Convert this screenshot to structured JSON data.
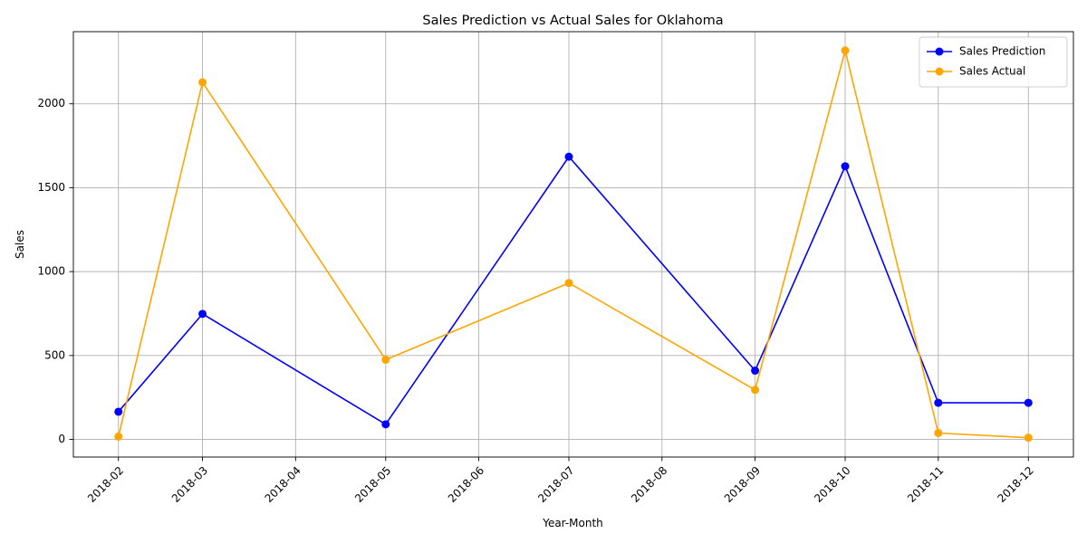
{
  "chart_data": {
    "type": "line",
    "title": "Sales Prediction vs Actual Sales for Oklahoma",
    "xlabel": "Year-Month",
    "ylabel": "Sales",
    "x_ticks": [
      "2018-02",
      "2018-03",
      "2018-04",
      "2018-05",
      "2018-06",
      "2018-07",
      "2018-08",
      "2018-09",
      "2018-10",
      "2018-11",
      "2018-12"
    ],
    "y_ticks": [
      0,
      500,
      1000,
      1500,
      2000
    ],
    "ylim": [
      -105,
      2430
    ],
    "xlim": [
      "2018-01-17",
      "2018-12-16"
    ],
    "grid": true,
    "legend_position": "top-right",
    "series": [
      {
        "name": "Sales Prediction",
        "color": "#0000ff",
        "marker": "circle",
        "x": [
          "2018-02",
          "2018-03",
          "2018-05",
          "2018-07",
          "2018-09",
          "2018-10",
          "2018-11",
          "2018-12"
        ],
        "values": [
          165,
          748,
          90,
          1685,
          410,
          1628,
          218,
          218
        ]
      },
      {
        "name": "Sales Actual",
        "color": "#ffa500",
        "marker": "circle",
        "x": [
          "2018-02",
          "2018-03",
          "2018-05",
          "2018-07",
          "2018-09",
          "2018-10",
          "2018-11",
          "2018-12"
        ],
        "values": [
          17,
          2128,
          475,
          932,
          295,
          2318,
          38,
          10
        ]
      }
    ]
  }
}
